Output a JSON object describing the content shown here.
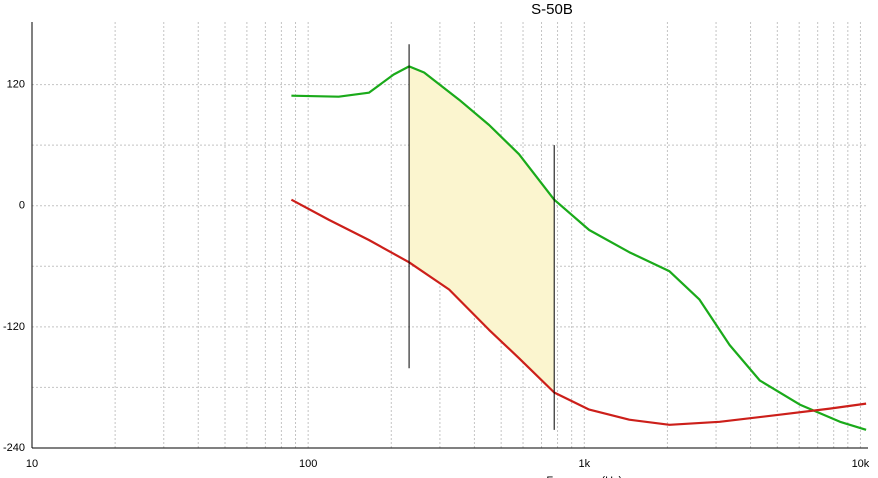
{
  "chart_data": {
    "type": "line",
    "title": "S-50B",
    "x_label": "Frequency (Hz)",
    "log_x": true,
    "grid": true,
    "xlim": [
      10,
      10650
    ],
    "ylim": [
      -240,
      182
    ],
    "xticks": [
      10,
      100,
      {
        "value": 1000,
        "label": "1k"
      },
      {
        "value": 10000,
        "label": "10k"
      }
    ],
    "xminorticks": [
      20,
      30,
      40,
      50,
      60,
      70,
      80,
      90,
      200,
      300,
      400,
      500,
      600,
      700,
      800,
      900,
      2000,
      3000,
      4000,
      5000,
      6000,
      7000,
      8000,
      9000
    ],
    "yticks": [
      -240,
      -120,
      0,
      120
    ],
    "yminorticks": [
      -180,
      -60,
      60
    ],
    "series": [
      {
        "color": "#1aaa1a",
        "x": [
          87,
          129,
          166,
          204,
          232,
          263,
          352,
          452,
          580,
          778,
          1042,
          1455,
          2035,
          2614,
          3360,
          4316,
          6030,
          8430,
          10480
        ],
        "values": [
          109,
          108,
          112,
          130,
          138,
          132,
          105,
          80,
          51,
          6,
          -24,
          -46,
          -65,
          -93,
          -138,
          -173,
          -197,
          -214,
          -222
        ]
      },
      {
        "color": "#cc1f1a",
        "x": [
          87,
          119,
          166,
          232,
          324,
          452,
          580,
          778,
          1042,
          1455,
          2035,
          3090,
          5105,
          7745,
          10480
        ],
        "values": [
          6,
          -14,
          -34,
          -56,
          -83,
          -123,
          -151,
          -185,
          -202,
          -212,
          -217,
          -214,
          -207,
          -201,
          -196
        ]
      }
    ],
    "shade_color": "#fbf5cf",
    "cursors": [
      {
        "x": 232,
        "y": [
          160,
          -161
        ]
      },
      {
        "x": 778,
        "y": [
          60,
          -222
        ]
      }
    ]
  }
}
